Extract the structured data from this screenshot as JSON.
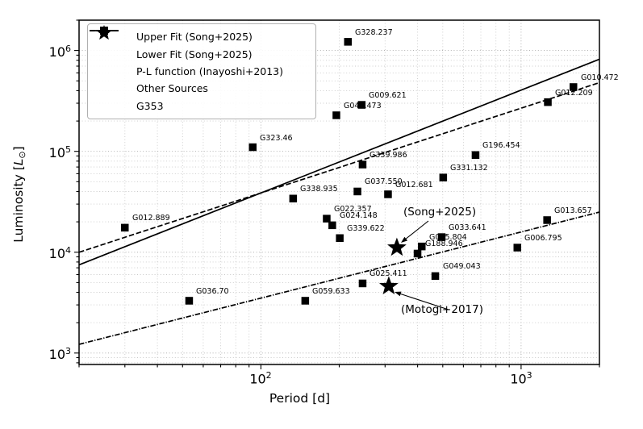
{
  "chart_data": {
    "type": "scatter",
    "title": "",
    "xlabel": "Period [d]",
    "ylabel": "Luminosity [L⊙]",
    "xscale": "log",
    "yscale": "log",
    "xlim": [
      20,
      2000
    ],
    "ylim": [
      770,
      2000000
    ],
    "x_tick_labels": [
      "10^2",
      "10^3"
    ],
    "y_tick_labels": [
      "10^3",
      "10^4",
      "10^5",
      "10^6"
    ],
    "grid": "dotted, major and minor, both axes",
    "legend_position": "upper left",
    "points_series_name": "Other Sources",
    "points": [
      {
        "name": "G012.889",
        "period_d": 30,
        "luminosity_Lsun": 17500
      },
      {
        "name": "G036.70",
        "period_d": 53,
        "luminosity_Lsun": 3300
      },
      {
        "name": "G323.46",
        "period_d": 93,
        "luminosity_Lsun": 110000
      },
      {
        "name": "G338.935",
        "period_d": 133,
        "luminosity_Lsun": 34000
      },
      {
        "name": "G059.633",
        "period_d": 148,
        "luminosity_Lsun": 3300
      },
      {
        "name": "G022.357",
        "period_d": 179,
        "luminosity_Lsun": 21500
      },
      {
        "name": "G024.148",
        "period_d": 188,
        "luminosity_Lsun": 18500
      },
      {
        "name": "G045.473",
        "period_d": 195,
        "luminosity_Lsun": 228000
      },
      {
        "name": "G339.622",
        "period_d": 201,
        "luminosity_Lsun": 13800
      },
      {
        "name": "G328.237",
        "period_d": 216,
        "luminosity_Lsun": 1220000
      },
      {
        "name": "G037.550",
        "period_d": 235,
        "luminosity_Lsun": 40000
      },
      {
        "name": "G009.621",
        "period_d": 244,
        "luminosity_Lsun": 289000
      },
      {
        "name": "G339.986",
        "period_d": 246,
        "luminosity_Lsun": 74000
      },
      {
        "name": "G025.411",
        "period_d": 246,
        "luminosity_Lsun": 4900
      },
      {
        "name": "G012.681",
        "period_d": 308,
        "luminosity_Lsun": 37500
      },
      {
        "name": "G188.946",
        "period_d": 400,
        "luminosity_Lsun": 9700
      },
      {
        "name": "G045.804",
        "period_d": 415,
        "luminosity_Lsun": 11400
      },
      {
        "name": "G049.043",
        "period_d": 468,
        "luminosity_Lsun": 5800
      },
      {
        "name": "G033.641",
        "period_d": 495,
        "luminosity_Lsun": 14100
      },
      {
        "name": "G331.132",
        "period_d": 502,
        "luminosity_Lsun": 55000
      },
      {
        "name": "G196.454",
        "period_d": 668,
        "luminosity_Lsun": 92000
      },
      {
        "name": "G006.795",
        "period_d": 967,
        "luminosity_Lsun": 11100
      },
      {
        "name": "G013.657",
        "period_d": 1259,
        "luminosity_Lsun": 20800
      },
      {
        "name": "G012.209",
        "period_d": 1267,
        "luminosity_Lsun": 308000
      },
      {
        "name": "G010.472",
        "period_d": 1589,
        "luminosity_Lsun": 434000
      }
    ],
    "stars": [
      {
        "name": "G353 (Song+2025)",
        "period_d": 333,
        "luminosity_Lsun": 11100
      },
      {
        "name": "G353 (Motogi+2017)",
        "period_d": 310,
        "luminosity_Lsun": 4600
      }
    ],
    "lines": [
      {
        "name": "Upper Fit (Song+2025)",
        "style": "dashed",
        "endpoints": [
          [
            20,
            10000
          ],
          [
            2000,
            480000
          ]
        ]
      },
      {
        "name": "Lower Fit (Song+2025)",
        "style": "dashdot",
        "endpoints": [
          [
            20,
            1220
          ],
          [
            2000,
            25000
          ]
        ]
      },
      {
        "name": "P-L function (Inayoshi+2013)",
        "style": "solid",
        "endpoints": [
          [
            20,
            7500
          ],
          [
            2000,
            820000
          ]
        ]
      }
    ],
    "annotations": [
      {
        "text": "(Song+2025)",
        "points_to": "G353 (Song+2025)"
      },
      {
        "text": "(Motogi+2017)",
        "points_to": "G353 (Motogi+2017)"
      }
    ]
  },
  "legend": {
    "entries": [
      {
        "style": "dashed",
        "label": "Upper Fit (Song+2025)"
      },
      {
        "style": "dashdot",
        "label": "Lower Fit (Song+2025)"
      },
      {
        "style": "solid",
        "label": "P-L function (Inayoshi+2013)"
      },
      {
        "style": "square",
        "label": "Other Sources"
      },
      {
        "style": "star",
        "label": "G353"
      }
    ]
  },
  "colors": {
    "foreground": "#000000",
    "background": "#ffffff",
    "grid_minor": "#c9c9c9",
    "grid_major": "#a8a8a8"
  }
}
